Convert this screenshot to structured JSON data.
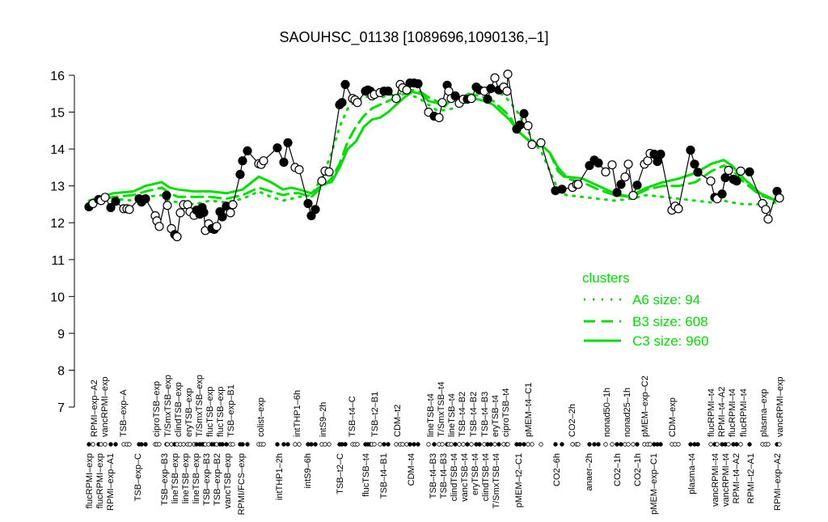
{
  "chart_data": {
    "type": "line",
    "title": "SAOUHSC_01138 [1089696,1090136,–1]",
    "xlabel": "",
    "ylabel": "",
    "ylim": [
      7,
      16
    ],
    "yticks": [
      7,
      8,
      9,
      10,
      11,
      12,
      13,
      14,
      15,
      16
    ],
    "grid": false,
    "legend": {
      "title": "clusters",
      "placement": "right-middle",
      "color": "#00e000",
      "entries": [
        {
          "label": "A6 size: 94",
          "style": "dotted"
        },
        {
          "label": "B3 size: 608",
          "style": "dashed"
        },
        {
          "label": "C3 size: 960",
          "style": "solid"
        }
      ]
    },
    "point_style": {
      "filled": "#000000",
      "open": "#ffffff",
      "line": "#000000"
    },
    "points": [
      {
        "v": 12.43,
        "f": true
      },
      {
        "v": 12.52,
        "f": false
      },
      {
        "v": 12.63,
        "f": true
      },
      {
        "v": 12.6,
        "f": false
      },
      {
        "v": 12.69,
        "f": false
      },
      {
        "v": 12.41,
        "f": true
      },
      {
        "v": 12.58,
        "f": true
      },
      {
        "v": 12.38,
        "f": false
      },
      {
        "v": 12.38,
        "f": false
      },
      {
        "v": 12.36,
        "f": false
      },
      {
        "v": 12.65,
        "f": true
      },
      {
        "v": 12.56,
        "f": true
      },
      {
        "v": 12.65,
        "f": true
      },
      {
        "v": 12.19,
        "f": false
      },
      {
        "v": 12.05,
        "f": false
      },
      {
        "v": 11.9,
        "f": false
      },
      {
        "v": 12.74,
        "f": true
      },
      {
        "v": 12.47,
        "f": false
      },
      {
        "v": 11.84,
        "f": false
      },
      {
        "v": 11.68,
        "f": true
      },
      {
        "v": 11.62,
        "f": false
      },
      {
        "v": 12.27,
        "f": false
      },
      {
        "v": 12.49,
        "f": false
      },
      {
        "v": 12.49,
        "f": false
      },
      {
        "v": 12.3,
        "f": false
      },
      {
        "v": 12.2,
        "f": false
      },
      {
        "v": 12.34,
        "f": true
      },
      {
        "v": 12.23,
        "f": true
      },
      {
        "v": 12.41,
        "f": true
      },
      {
        "v": 12.28,
        "f": true
      },
      {
        "v": 11.79,
        "f": false
      },
      {
        "v": 11.97,
        "f": false
      },
      {
        "v": 11.84,
        "f": true
      },
      {
        "v": 11.82,
        "f": true
      },
      {
        "v": 11.9,
        "f": false
      },
      {
        "v": 12.3,
        "f": true
      },
      {
        "v": 12.16,
        "f": true
      },
      {
        "v": 12.45,
        "f": true
      },
      {
        "v": 12.27,
        "f": false
      },
      {
        "v": 12.49,
        "f": false
      },
      {
        "v": 13.31,
        "f": true
      },
      {
        "v": 13.68,
        "f": true
      },
      {
        "v": 13.95,
        "f": true
      },
      {
        "v": 13.6,
        "f": false
      },
      {
        "v": 13.58,
        "f": false
      },
      {
        "v": 13.68,
        "f": false
      },
      {
        "v": 14.03,
        "f": true
      },
      {
        "v": 13.64,
        "f": true
      },
      {
        "v": 14.17,
        "f": true
      },
      {
        "v": 13.5,
        "f": false
      },
      {
        "v": 13.44,
        "f": false
      },
      {
        "v": 12.52,
        "f": true
      },
      {
        "v": 12.19,
        "f": true
      },
      {
        "v": 12.36,
        "f": true
      },
      {
        "v": 13.13,
        "f": false
      },
      {
        "v": 13.4,
        "f": false
      },
      {
        "v": 13.38,
        "f": false
      },
      {
        "v": 15.2,
        "f": true
      },
      {
        "v": 15.26,
        "f": true
      },
      {
        "v": 15.75,
        "f": true
      },
      {
        "v": 15.37,
        "f": false
      },
      {
        "v": 15.33,
        "f": false
      },
      {
        "v": 15.26,
        "f": false
      },
      {
        "v": 15.57,
        "f": true
      },
      {
        "v": 15.6,
        "f": true
      },
      {
        "v": 15.57,
        "f": true
      },
      {
        "v": 15.44,
        "f": false
      },
      {
        "v": 15.48,
        "f": false
      },
      {
        "v": 15.53,
        "f": false
      },
      {
        "v": 15.57,
        "f": true
      },
      {
        "v": 15.57,
        "f": true
      },
      {
        "v": 15.37,
        "f": false
      },
      {
        "v": 15.75,
        "f": false
      },
      {
        "v": 15.66,
        "f": false
      },
      {
        "v": 15.6,
        "f": false
      },
      {
        "v": 15.79,
        "f": true
      },
      {
        "v": 15.79,
        "f": true
      },
      {
        "v": 15.77,
        "f": true
      },
      {
        "v": 15.0,
        "f": false
      },
      {
        "v": 14.89,
        "f": true
      },
      {
        "v": 14.85,
        "f": false
      },
      {
        "v": 15.26,
        "f": false
      },
      {
        "v": 15.73,
        "f": true
      },
      {
        "v": 15.57,
        "f": false
      },
      {
        "v": 15.37,
        "f": false
      },
      {
        "v": 15.44,
        "f": true
      },
      {
        "v": 15.24,
        "f": false
      },
      {
        "v": 15.35,
        "f": false
      },
      {
        "v": 15.35,
        "f": true
      },
      {
        "v": 15.37,
        "f": false
      },
      {
        "v": 15.68,
        "f": true
      },
      {
        "v": 15.6,
        "f": true
      },
      {
        "v": 15.57,
        "f": false
      },
      {
        "v": 15.35,
        "f": true
      },
      {
        "v": 15.64,
        "f": true
      },
      {
        "v": 15.93,
        "f": false
      },
      {
        "v": 15.6,
        "f": true
      },
      {
        "v": 15.68,
        "f": false
      },
      {
        "v": 15.57,
        "f": false
      },
      {
        "v": 16.03,
        "f": false
      },
      {
        "v": 14.54,
        "f": true
      },
      {
        "v": 14.65,
        "f": true
      },
      {
        "v": 14.96,
        "f": true
      },
      {
        "v": 14.63,
        "f": false
      },
      {
        "v": 14.12,
        "f": false
      },
      {
        "v": 14.17,
        "f": false
      },
      {
        "v": 12.87,
        "f": true
      },
      {
        "v": 12.91,
        "f": true
      },
      {
        "v": 12.96,
        "f": false
      },
      {
        "v": 13.04,
        "f": false
      },
      {
        "v": 13.04,
        "f": false
      },
      {
        "v": 13.55,
        "f": true
      },
      {
        "v": 13.7,
        "f": true
      },
      {
        "v": 13.62,
        "f": true
      },
      {
        "v": 13.38,
        "f": false
      },
      {
        "v": 13.57,
        "f": false
      },
      {
        "v": 12.82,
        "f": true
      },
      {
        "v": 13.04,
        "f": true
      },
      {
        "v": 13.24,
        "f": false
      },
      {
        "v": 13.59,
        "f": false
      },
      {
        "v": 12.74,
        "f": false
      },
      {
        "v": 13.02,
        "f": true
      },
      {
        "v": 13.59,
        "f": false
      },
      {
        "v": 13.68,
        "f": false
      },
      {
        "v": 13.88,
        "f": false
      },
      {
        "v": 13.86,
        "f": true
      },
      {
        "v": 13.66,
        "f": true
      },
      {
        "v": 13.86,
        "f": true
      },
      {
        "v": 12.34,
        "f": false
      },
      {
        "v": 12.45,
        "f": false
      },
      {
        "v": 12.38,
        "f": false
      },
      {
        "v": 13.97,
        "f": true
      },
      {
        "v": 13.59,
        "f": true
      },
      {
        "v": 13.37,
        "f": true
      },
      {
        "v": 13.13,
        "f": false
      },
      {
        "v": 12.69,
        "f": true
      },
      {
        "v": 12.65,
        "f": false
      },
      {
        "v": 12.78,
        "f": true
      },
      {
        "v": 13.22,
        "f": true
      },
      {
        "v": 13.42,
        "f": false
      },
      {
        "v": 13.18,
        "f": true
      },
      {
        "v": 13.13,
        "f": true
      },
      {
        "v": 13.4,
        "f": false
      },
      {
        "v": 13.38,
        "f": true
      },
      {
        "v": 12.52,
        "f": false
      },
      {
        "v": 12.36,
        "f": false
      },
      {
        "v": 12.1,
        "f": false
      },
      {
        "v": 12.85,
        "f": true
      },
      {
        "v": 12.67,
        "f": false
      }
    ],
    "cluster_lines": {
      "C3": [
        12.6,
        12.8,
        12.85,
        13.0,
        13.1,
        12.95,
        12.9,
        12.85,
        12.85,
        12.8,
        12.9,
        13.25,
        13.1,
        12.9,
        12.95,
        12.9,
        12.8,
        13.05,
        13.1,
        13.5,
        14.0,
        14.2,
        14.6,
        14.8,
        14.85,
        15.0,
        15.2,
        15.4,
        15.55,
        15.5,
        15.3,
        15.25,
        15.15,
        15.4,
        15.35,
        15.45,
        15.35,
        15.3,
        15.2,
        15.0,
        14.8,
        14.5,
        14.3,
        14.1,
        14.1,
        13.9,
        13.5,
        13.25,
        13.2,
        13.0,
        12.8,
        12.7,
        12.85,
        12.95,
        13.1,
        13.2,
        13.35,
        13.6,
        13.7,
        13.55,
        13.2,
        12.8,
        12.6
      ],
      "B3": [
        12.55,
        12.7,
        12.75,
        12.85,
        12.95,
        12.8,
        12.7,
        12.7,
        12.7,
        12.65,
        12.75,
        12.95,
        12.85,
        12.75,
        12.8,
        12.8,
        12.7,
        13.0,
        13.2,
        13.6,
        14.2,
        14.6,
        14.9,
        15.1,
        15.2,
        15.3,
        15.4,
        15.5,
        15.6,
        15.55,
        15.4,
        15.3,
        15.2,
        15.4,
        15.4,
        15.5,
        15.45,
        15.4,
        15.3,
        15.1,
        14.9,
        14.5,
        14.3,
        14.15,
        14.1,
        13.9,
        13.4,
        13.2,
        13.1,
        12.9,
        12.75,
        12.7,
        12.8,
        12.9,
        13.0,
        13.0,
        13.1,
        13.4,
        13.55,
        13.45,
        13.1,
        12.75,
        12.6
      ],
      "A6": [
        12.5,
        12.65,
        12.6,
        12.7,
        12.75,
        12.6,
        12.55,
        12.5,
        12.6,
        12.55,
        12.65,
        12.85,
        12.7,
        12.6,
        12.65,
        12.7,
        12.75,
        13.3,
        13.9,
        14.6,
        15.1,
        15.3,
        15.4,
        15.45,
        15.4,
        15.45,
        15.5,
        15.5,
        15.45,
        15.35,
        15.2,
        15.05,
        15.05,
        15.1,
        15.2,
        15.3,
        15.5,
        15.6,
        15.6,
        15.5,
        15.3,
        15.0,
        14.6,
        14.2,
        13.9,
        13.4,
        12.9,
        12.75,
        12.7,
        12.65,
        12.6,
        12.65,
        12.7,
        12.75,
        12.7,
        12.65,
        12.6,
        12.55,
        12.6,
        12.55,
        12.5,
        12.5,
        12.55
      ]
    },
    "top_labels": [
      "RPMI–exp–A2",
      "vancRPMI–exp",
      "TSB–exp–A",
      "ciproTSB–exp",
      "T/SmxTSB–exp",
      "clindTSB–exp",
      "eryTSB–exp",
      "T/SmxTSB–exp",
      "flucTSB–exp",
      "flucTSB–exp",
      "TSB–exp–B1",
      "colist–exp",
      "intTHP1–6h",
      "intS9–2h",
      "TSB–t4–C",
      "TSB–t2–B1",
      "CDM–t2",
      "lineTSB–t4",
      "T/SmxTSB–t4",
      "lineTSB–t4",
      "TSB–t4–B2",
      "TSB–t4–B2",
      "TSB–t4–B3",
      "eryTSB–t4",
      "ciproTSB–t4",
      "pMEM–t4–C1",
      "CO2–2h",
      "nonad50–1h",
      "nonad25–1h",
      "pMEM–exp–C2",
      "CDM–exp",
      "flucRPMI–t4",
      "RPMI–t4–A2",
      "flucRPMI–t4",
      "flucRPMI–t4",
      "plasma–exp",
      "vancRPMI–exp"
    ],
    "bottom_labels": [
      "flucRPMI–exp",
      "flucRPMI–exp",
      "RPMI–exp–A1",
      "TSB–exp–C",
      "TSB–exp–B3",
      "lineTSB–exp",
      "lineTSB–exp",
      "lineTSB–exp",
      "TSB–exp–B3",
      "TSB–exp–B2",
      "vancTSB–exp",
      "RPMI/FCS–exp",
      "intTHP1–2h",
      "intS9–6h",
      "TSB–t2–C",
      "flucTSB–t4",
      "TSB–t4–B1",
      "CDM–t4",
      "TSB–t4–B3",
      "TSB–t4–B3",
      "clindTSB–t4",
      "vancTSB–t4",
      "eryTSB–t4",
      "clindTSB–t4",
      "T/SmxTSB–t4",
      "pMEM–t2–C1",
      "CO2–6h",
      "anaer–2h",
      "CO2–1h",
      "CO2–1h",
      "pMEM–exp–C1",
      "plasma–t4",
      "vancRPMI–t4",
      "vancRPMI–t4",
      "RPMI–t4–A2",
      "RPMI–t2–A1",
      "RPMI–exp–A2"
    ]
  }
}
